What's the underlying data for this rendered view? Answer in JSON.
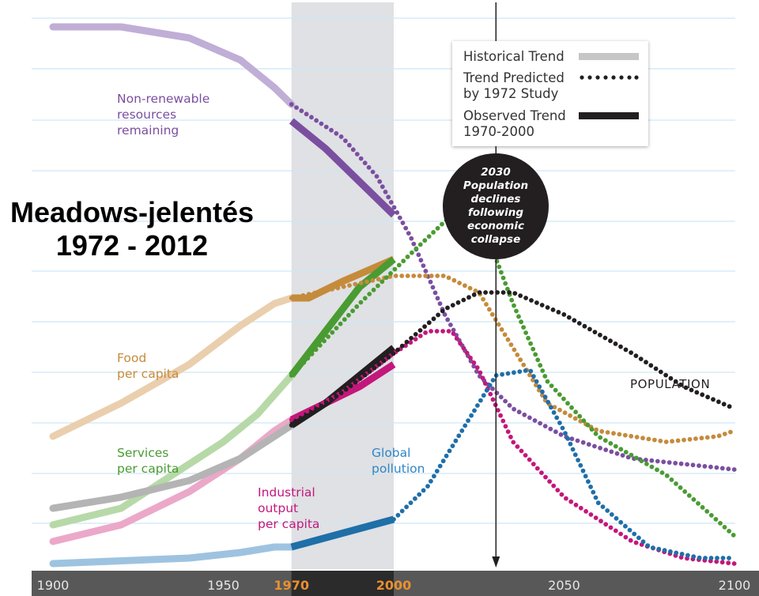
{
  "heading": {
    "line1": "Meadows-jelentés",
    "line2": "1972 - 2012"
  },
  "legend": {
    "historical": "Historical Trend",
    "predicted_line1": "Trend Predicted",
    "predicted_line2": "by 1972 Study",
    "observed_line1": "Observed Trend",
    "observed_line2": "1970-2000"
  },
  "callout": {
    "year": "2030",
    "lines": [
      "Population",
      "declines",
      "following",
      "economic",
      "collapse"
    ]
  },
  "colors": {
    "resources": "#7b4fa0",
    "resources_hist": "#c0aed6",
    "food": "#c58b3c",
    "food_hist": "#eacfae",
    "services": "#4a9b32",
    "services_hist": "#b7d9a8",
    "industrial": "#c4177b",
    "industrial_hist": "#eba8c9",
    "population": "#231f20",
    "population_hist": "#b4b4b4",
    "pollution": "#1f6fa8",
    "pollution_hist": "#9ec3e0",
    "highlight_band": "#dfe1e4",
    "axis_bar": "#585858",
    "gridline": "#cfe8f6"
  },
  "chart_data": {
    "type": "line",
    "title": "",
    "xlabel": "",
    "ylabel": "",
    "xlim": [
      1900,
      2100
    ],
    "ylim": [
      0,
      100
    ],
    "x_ticks": [
      "1900",
      "1950",
      "1970",
      "2000",
      "2050",
      "2100"
    ],
    "highlight_ticks": [
      "1970",
      "2000"
    ],
    "highlight_range": [
      1970,
      2000
    ],
    "marker_year": 2030,
    "series_labels": {
      "resources": [
        "Non-renewable",
        "resources",
        "remaining"
      ],
      "food": [
        "Food",
        "per capita"
      ],
      "services": [
        "Services",
        "per capita"
      ],
      "industrial": [
        "Industrial",
        "output",
        "per capita"
      ],
      "pollution": [
        "Global",
        "pollution"
      ],
      "population": [
        "POPULATION"
      ]
    },
    "series": [
      {
        "key": "resources",
        "historical": [
          [
            1900,
            98
          ],
          [
            1920,
            98
          ],
          [
            1940,
            96
          ],
          [
            1955,
            92
          ],
          [
            1965,
            87
          ],
          [
            1970,
            84
          ]
        ],
        "observed": [
          [
            1970,
            81
          ],
          [
            1980,
            76
          ],
          [
            1990,
            70
          ],
          [
            2000,
            64
          ]
        ],
        "predicted": [
          [
            1970,
            84
          ],
          [
            1985,
            78
          ],
          [
            1995,
            71
          ],
          [
            2005,
            60
          ],
          [
            2015,
            46
          ],
          [
            2025,
            35
          ],
          [
            2035,
            29
          ],
          [
            2050,
            24
          ],
          [
            2070,
            20
          ],
          [
            2100,
            18
          ]
        ]
      },
      {
        "key": "food",
        "historical": [
          [
            1900,
            24
          ],
          [
            1920,
            30
          ],
          [
            1940,
            37
          ],
          [
            1955,
            44
          ],
          [
            1965,
            48
          ],
          [
            1970,
            49
          ]
        ],
        "observed": [
          [
            1970,
            49
          ],
          [
            1975,
            49
          ],
          [
            1985,
            52
          ],
          [
            2000,
            56
          ]
        ],
        "predicted": [
          [
            1970,
            49
          ],
          [
            1985,
            51
          ],
          [
            2000,
            53
          ],
          [
            2015,
            53
          ],
          [
            2025,
            50
          ],
          [
            2035,
            40
          ],
          [
            2045,
            30
          ],
          [
            2060,
            25
          ],
          [
            2080,
            23
          ],
          [
            2095,
            24
          ],
          [
            2100,
            25
          ]
        ]
      },
      {
        "key": "services",
        "historical": [
          [
            1900,
            8
          ],
          [
            1920,
            11
          ],
          [
            1935,
            17
          ],
          [
            1950,
            23
          ],
          [
            1960,
            28
          ],
          [
            1970,
            35
          ]
        ],
        "observed": [
          [
            1970,
            35
          ],
          [
            1980,
            43
          ],
          [
            1990,
            51
          ],
          [
            2000,
            56
          ]
        ],
        "predicted": [
          [
            1970,
            35
          ],
          [
            1990,
            48
          ],
          [
            2005,
            57
          ],
          [
            2017,
            64
          ],
          [
            2027,
            61
          ],
          [
            2035,
            48
          ],
          [
            2045,
            34
          ],
          [
            2060,
            24
          ],
          [
            2080,
            17
          ],
          [
            2100,
            6
          ]
        ]
      },
      {
        "key": "industrial",
        "historical": [
          [
            1900,
            5
          ],
          [
            1920,
            8
          ],
          [
            1940,
            14
          ],
          [
            1955,
            20
          ],
          [
            1965,
            25
          ],
          [
            1970,
            27
          ]
        ],
        "observed": [
          [
            1970,
            27
          ],
          [
            1980,
            30
          ],
          [
            1990,
            33
          ],
          [
            2000,
            37
          ]
        ],
        "predicted": [
          [
            1970,
            27
          ],
          [
            1985,
            32
          ],
          [
            2000,
            39
          ],
          [
            2010,
            43
          ],
          [
            2017,
            43
          ],
          [
            2025,
            36
          ],
          [
            2035,
            23
          ],
          [
            2050,
            13
          ],
          [
            2070,
            5
          ],
          [
            2085,
            2
          ],
          [
            2100,
            1
          ]
        ]
      },
      {
        "key": "population",
        "historical": [
          [
            1900,
            11
          ],
          [
            1920,
            13
          ],
          [
            1940,
            16
          ],
          [
            1955,
            20
          ],
          [
            1965,
            24
          ],
          [
            1970,
            26
          ]
        ],
        "observed": [
          [
            1970,
            26
          ],
          [
            1980,
            30
          ],
          [
            1990,
            35
          ],
          [
            2000,
            40
          ]
        ],
        "predicted": [
          [
            1970,
            26
          ],
          [
            1985,
            32
          ],
          [
            2000,
            39
          ],
          [
            2015,
            47
          ],
          [
            2025,
            50
          ],
          [
            2035,
            50
          ],
          [
            2050,
            46
          ],
          [
            2070,
            39
          ],
          [
            2085,
            33
          ],
          [
            2100,
            29
          ]
        ]
      },
      {
        "key": "pollution",
        "historical": [
          [
            1900,
            1
          ],
          [
            1920,
            1.5
          ],
          [
            1940,
            2
          ],
          [
            1955,
            3
          ],
          [
            1965,
            4
          ],
          [
            1970,
            4
          ]
        ],
        "observed": [
          [
            1970,
            4
          ],
          [
            1985,
            6.5
          ],
          [
            2000,
            9
          ]
        ],
        "predicted": [
          [
            2000,
            9
          ],
          [
            2010,
            15
          ],
          [
            2020,
            25
          ],
          [
            2030,
            35
          ],
          [
            2040,
            36
          ],
          [
            2050,
            25
          ],
          [
            2060,
            12
          ],
          [
            2075,
            4
          ],
          [
            2090,
            2
          ],
          [
            2100,
            2
          ]
        ]
      }
    ]
  }
}
